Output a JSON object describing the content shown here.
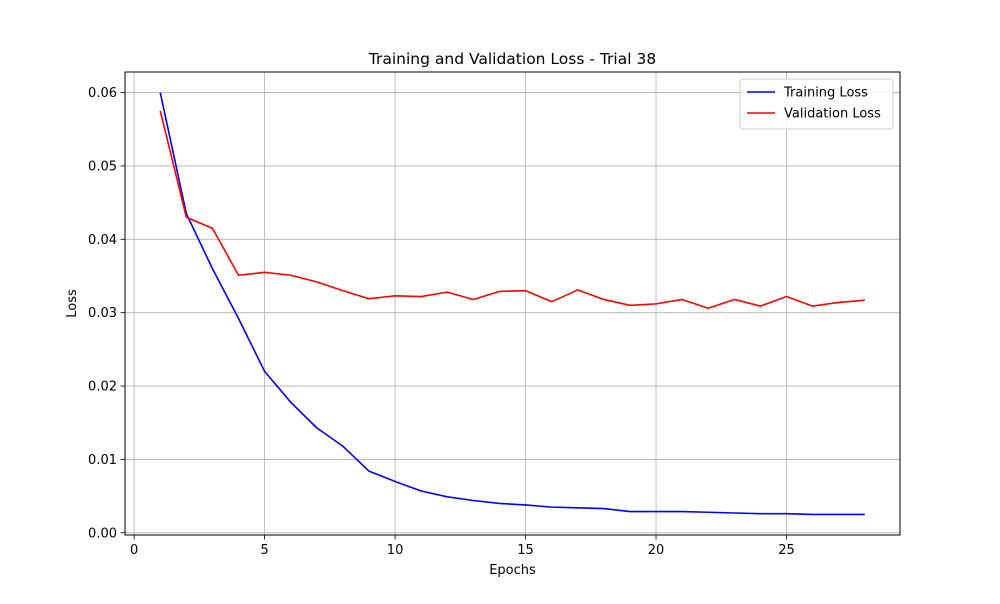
{
  "chart_data": {
    "type": "line",
    "title": "Training and Validation Loss - Trial 38",
    "xlabel": "Epochs",
    "ylabel": "Loss",
    "xlim": [
      -0.35,
      29.35
    ],
    "ylim": [
      -0.0003,
      0.0628
    ],
    "xticks": [
      0,
      5,
      10,
      15,
      20,
      25
    ],
    "yticks": [
      0.0,
      0.01,
      0.02,
      0.03,
      0.04,
      0.05,
      0.06
    ],
    "ytick_labels": [
      "0.00",
      "0.01",
      "0.02",
      "0.03",
      "0.04",
      "0.05",
      "0.06"
    ],
    "grid": true,
    "legend_position": "top-right",
    "x": [
      1,
      2,
      3,
      4,
      5,
      6,
      7,
      8,
      9,
      10,
      11,
      12,
      13,
      14,
      15,
      16,
      17,
      18,
      19,
      20,
      21,
      22,
      23,
      24,
      25,
      26,
      27,
      28
    ],
    "series": [
      {
        "name": "Training Loss",
        "color": "#0000ff",
        "values": [
          0.06,
          0.0435,
          0.036,
          0.0292,
          0.022,
          0.0178,
          0.0143,
          0.0118,
          0.0084,
          0.007,
          0.0057,
          0.0049,
          0.0044,
          0.004,
          0.0038,
          0.0035,
          0.0034,
          0.0033,
          0.0029,
          0.0029,
          0.0029,
          0.0028,
          0.0027,
          0.0026,
          0.0026,
          0.0025,
          0.0025,
          0.0025
        ]
      },
      {
        "name": "Validation Loss",
        "color": "#ff0000",
        "values": [
          0.0575,
          0.043,
          0.0415,
          0.0351,
          0.0355,
          0.0351,
          0.0342,
          0.033,
          0.0319,
          0.0323,
          0.0322,
          0.0328,
          0.0318,
          0.0329,
          0.033,
          0.0315,
          0.0331,
          0.0318,
          0.031,
          0.0312,
          0.0318,
          0.0306,
          0.0318,
          0.0309,
          0.0322,
          0.0309,
          0.0314,
          0.0317
        ]
      }
    ]
  }
}
